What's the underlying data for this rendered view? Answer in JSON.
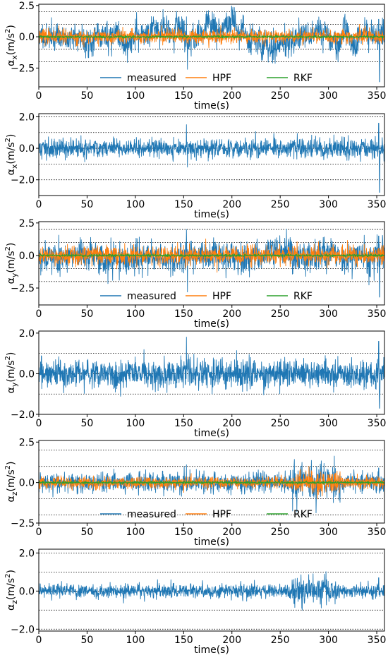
{
  "chart_data": [
    {
      "type": "line",
      "ylabel_sym": "α",
      "ylabel_sub": "x",
      "ylabel_unit": "(m/s",
      "ylabel_sup": "2",
      "ylabel_close": ")",
      "xlabel": "time(s)",
      "xlim": [
        0,
        358
      ],
      "ylim": [
        -4.0,
        2.6
      ],
      "xticks": [
        "0",
        "50",
        "100",
        "150",
        "200",
        "250",
        "300",
        "350"
      ],
      "yticks": [
        "2.5",
        "0.0",
        "−2.5"
      ],
      "ytick_values": [
        2.5,
        0.0,
        -2.5
      ],
      "grid": "horizontal dotted",
      "grid_values": [
        2.0,
        1.0,
        0.0,
        -1.0,
        -2.0
      ],
      "legend": "lower center",
      "series": [
        {
          "name": "measured",
          "color": "#1f77b4",
          "amplitude": 0.55,
          "drift": 0.45,
          "seed": 11
        },
        {
          "name": "HPF",
          "color": "#ff7f0e",
          "amplitude": 0.28,
          "drift": 0.0,
          "seed": 23
        },
        {
          "name": "RKF",
          "color": "#2ca02c",
          "amplitude": 0.05,
          "drift": 0.0,
          "seed": 37
        }
      ],
      "spikes": [
        {
          "x": 153,
          "y": 1.6
        },
        {
          "x": 154,
          "y": -2.6
        },
        {
          "x": 352,
          "y": 1.4
        },
        {
          "x": 353,
          "y": -3.6
        }
      ]
    },
    {
      "type": "line",
      "ylabel_sym": "α",
      "ylabel_sub": "x",
      "ylabel_unit": "(m/s",
      "ylabel_sup": "2",
      "ylabel_close": ")",
      "xlabel": "time(s)",
      "xlim": [
        0,
        358
      ],
      "ylim": [
        -3.0,
        2.2
      ],
      "xticks": [
        "0",
        "50",
        "100",
        "150",
        "200",
        "250",
        "300",
        "350"
      ],
      "yticks": [
        "2.0",
        "0.0",
        "−2.0"
      ],
      "ytick_values": [
        2.0,
        0.0,
        -2.0
      ],
      "grid": "horizontal dotted",
      "grid_values": [
        2.0,
        1.0,
        0.0,
        -1.0,
        -2.0
      ],
      "legend": "none",
      "series": [
        {
          "name": "",
          "color": "#1f77b4",
          "amplitude": 0.3,
          "drift": 0.0,
          "seed": 41
        }
      ],
      "spikes": [
        {
          "x": 153,
          "y": 1.5
        },
        {
          "x": 154,
          "y": -1.2
        },
        {
          "x": 352,
          "y": 1.6
        },
        {
          "x": 353,
          "y": -2.8
        }
      ]
    },
    {
      "type": "line",
      "ylabel_sym": "α",
      "ylabel_sub": "y",
      "ylabel_unit": "(m/s",
      "ylabel_sup": "2",
      "ylabel_close": ")",
      "xlabel": "time(s)",
      "xlim": [
        0,
        358
      ],
      "ylim": [
        -3.8,
        2.6
      ],
      "xticks": [
        "0",
        "50",
        "100",
        "150",
        "200",
        "250",
        "300",
        "350"
      ],
      "yticks": [
        "2.5",
        "0.0",
        "−2.5"
      ],
      "ytick_values": [
        2.5,
        0.0,
        -2.5
      ],
      "grid": "horizontal dotted",
      "grid_values": [
        2.0,
        1.0,
        0.0,
        -1.0,
        -2.0
      ],
      "legend": "lower center",
      "series": [
        {
          "name": "measured",
          "color": "#1f77b4",
          "amplitude": 0.6,
          "drift": 0.15,
          "seed": 53
        },
        {
          "name": "HPF",
          "color": "#ff7f0e",
          "amplitude": 0.35,
          "drift": 0.0,
          "seed": 61
        },
        {
          "name": "RKF",
          "color": "#2ca02c",
          "amplitude": 0.05,
          "drift": 0.0,
          "seed": 71
        }
      ],
      "spikes": [
        {
          "x": 153,
          "y": 2.0
        },
        {
          "x": 154,
          "y": -2.8
        },
        {
          "x": 352,
          "y": 1.5
        },
        {
          "x": 353,
          "y": -3.2
        }
      ]
    },
    {
      "type": "line",
      "ylabel_sym": "α",
      "ylabel_sub": "y",
      "ylabel_unit": "(m/s",
      "ylabel_sup": "2",
      "ylabel_close": ")",
      "xlabel": "time(s)",
      "xlim": [
        0,
        358
      ],
      "ylim": [
        -2.0,
        2.1
      ],
      "xticks": [
        "0",
        "50",
        "100",
        "150",
        "200",
        "250",
        "300",
        "350"
      ],
      "yticks": [
        "2.0",
        "0.0",
        "−2.0"
      ],
      "ytick_values": [
        2.0,
        0.0,
        -2.0
      ],
      "grid": "horizontal dotted",
      "grid_values": [
        1.0,
        0.0,
        -1.0,
        -2.0
      ],
      "legend": "none",
      "series": [
        {
          "name": "",
          "color": "#1f77b4",
          "amplitude": 0.35,
          "drift": 0.0,
          "seed": 83
        }
      ],
      "spikes": [
        {
          "x": 153,
          "y": 1.8
        },
        {
          "x": 352,
          "y": 1.6
        },
        {
          "x": 353,
          "y": -1.7
        }
      ]
    },
    {
      "type": "line",
      "ylabel_sym": "α",
      "ylabel_sub": "z",
      "ylabel_unit": "(m/s",
      "ylabel_sup": "2",
      "ylabel_close": ")",
      "xlabel": "time(s)",
      "xlim": [
        0,
        358
      ],
      "ylim": [
        -2.5,
        2.6
      ],
      "xticks": [
        "0",
        "50",
        "100",
        "150",
        "200",
        "250",
        "300",
        "350"
      ],
      "yticks": [
        "2.5",
        "0.0",
        "−2.5"
      ],
      "ytick_values": [
        2.5,
        0.0,
        -2.5
      ],
      "grid": "horizontal dotted",
      "grid_values": [
        2.0,
        1.0,
        0.0,
        -1.0,
        -2.0
      ],
      "legend": "lower center",
      "series": [
        {
          "name": "measured",
          "color": "#1f77b4",
          "amplitude": 0.3,
          "drift": 0.0,
          "seed": 97,
          "burst": [
            262,
            312,
            2.0
          ]
        },
        {
          "name": "HPF",
          "color": "#ff7f0e",
          "amplitude": 0.18,
          "drift": 0.0,
          "seed": 101,
          "burst": [
            262,
            312,
            2.0
          ]
        },
        {
          "name": "RKF",
          "color": "#2ca02c",
          "amplitude": 0.04,
          "drift": 0.0,
          "seed": 113
        }
      ],
      "spikes": [
        {
          "x": 153,
          "y": 1.1
        },
        {
          "x": 352,
          "y": 0.9
        }
      ]
    },
    {
      "type": "line",
      "ylabel_sym": "α",
      "ylabel_sub": "z",
      "ylabel_unit": "(m/s",
      "ylabel_sup": "2",
      "ylabel_close": ")",
      "xlabel": "time(s)",
      "xlim": [
        0,
        358
      ],
      "ylim": [
        -2.1,
        2.2
      ],
      "xticks": [
        "0",
        "50",
        "100",
        "150",
        "200",
        "250",
        "300",
        "350"
      ],
      "yticks": [
        "2.0",
        "0.0",
        "−2.0"
      ],
      "ytick_values": [
        2.0,
        0.0,
        -2.0
      ],
      "grid": "horizontal dotted",
      "grid_values": [
        2.0,
        1.0,
        0.0,
        -1.0,
        -2.0
      ],
      "legend": "none",
      "series": [
        {
          "name": "",
          "color": "#1f77b4",
          "amplitude": 0.18,
          "drift": 0.0,
          "seed": 127,
          "burst": [
            262,
            312,
            2.0
          ]
        }
      ],
      "spikes": [
        {
          "x": 123,
          "y": 0.6
        },
        {
          "x": 352,
          "y": 0.7
        }
      ]
    }
  ]
}
